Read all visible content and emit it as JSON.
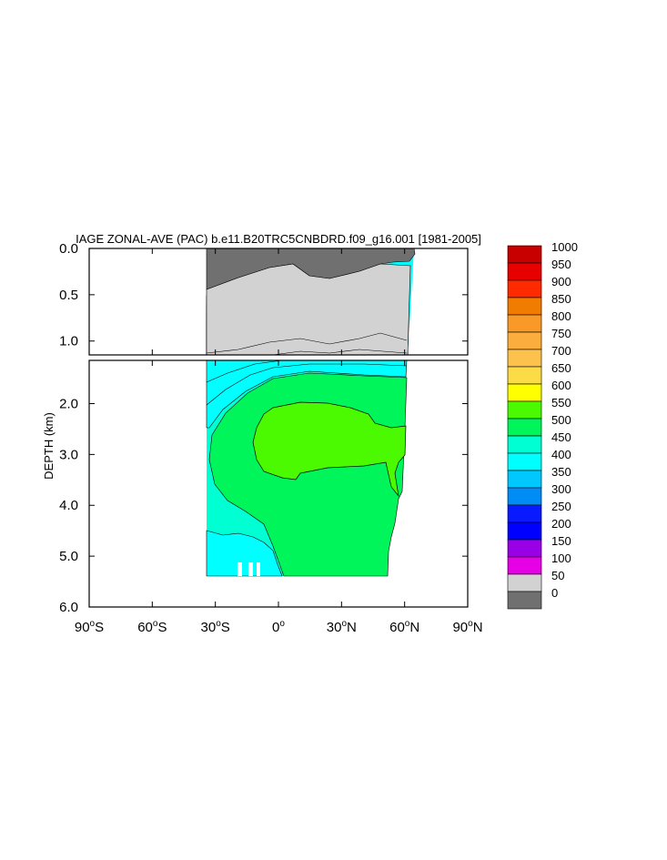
{
  "chart_data": {
    "type": "heatmap",
    "title": "IAGE ZONAL-AVE (PAC) b.e11.B20TRC5CNBDRD.f09_g16.001 [1981-2005]",
    "ylabel": "DEPTH (km)",
    "xlabel": "",
    "x_range": [
      -90,
      90
    ],
    "y_range_upper": [
      0.0,
      1.15
    ],
    "y_range_lower": [
      1.15,
      6.0
    ],
    "y_reversed": true,
    "x_ticks": [
      {
        "value": -90,
        "num": "90",
        "hemi": "S"
      },
      {
        "value": -60,
        "num": "60",
        "hemi": "S"
      },
      {
        "value": -30,
        "num": "30",
        "hemi": "S"
      },
      {
        "value": 0,
        "num": "0",
        "hemi": ""
      },
      {
        "value": 30,
        "num": "30",
        "hemi": "N"
      },
      {
        "value": 60,
        "num": "60",
        "hemi": "N"
      },
      {
        "value": 90,
        "num": "90",
        "hemi": "N"
      }
    ],
    "y_ticks_upper": [
      {
        "value": 0.0,
        "label": "0.0"
      },
      {
        "value": 0.5,
        "label": "0.5"
      },
      {
        "value": 1.0,
        "label": "1.0"
      }
    ],
    "y_ticks_lower": [
      {
        "value": 2.0,
        "label": "2.0"
      },
      {
        "value": 3.0,
        "label": "3.0"
      },
      {
        "value": 4.0,
        "label": "4.0"
      },
      {
        "value": 5.0,
        "label": "5.0"
      },
      {
        "value": 6.0,
        "label": "6.0"
      }
    ],
    "colorbar": {
      "levels": [
        "1000",
        "950",
        "900",
        "850",
        "800",
        "750",
        "700",
        "650",
        "600",
        "550",
        "500",
        "450",
        "400",
        "350",
        "300",
        "250",
        "200",
        "150",
        "100",
        "50",
        "0"
      ],
      "colors": [
        "#c80000",
        "#e60000",
        "#ff2a00",
        "#f07c00",
        "#f99a28",
        "#fbae3d",
        "#fdc24e",
        "#fcdc46",
        "#ffff00",
        "#4bfa00",
        "#00f55a",
        "#00ffd2",
        "#00ffff",
        "#00c8ff",
        "#008cf5",
        "#0a1aff",
        "#0000ff",
        "#9900e6",
        "#e600e6",
        "#d2d2d2",
        "#707070"
      ]
    },
    "fields": {
      "upper_colors": [
        "#707070",
        "#d2d2d2",
        "#e600e6",
        "#9900e6",
        "#0000ff",
        "#0a1aff",
        "#008cf5",
        "#00c8ff",
        "#00ffff"
      ],
      "lower_colors": {
        "outer": "#00ffd2",
        "middle": "#00f55a",
        "core": "#4bfa00",
        "deep_south": "#00ffff"
      }
    }
  }
}
